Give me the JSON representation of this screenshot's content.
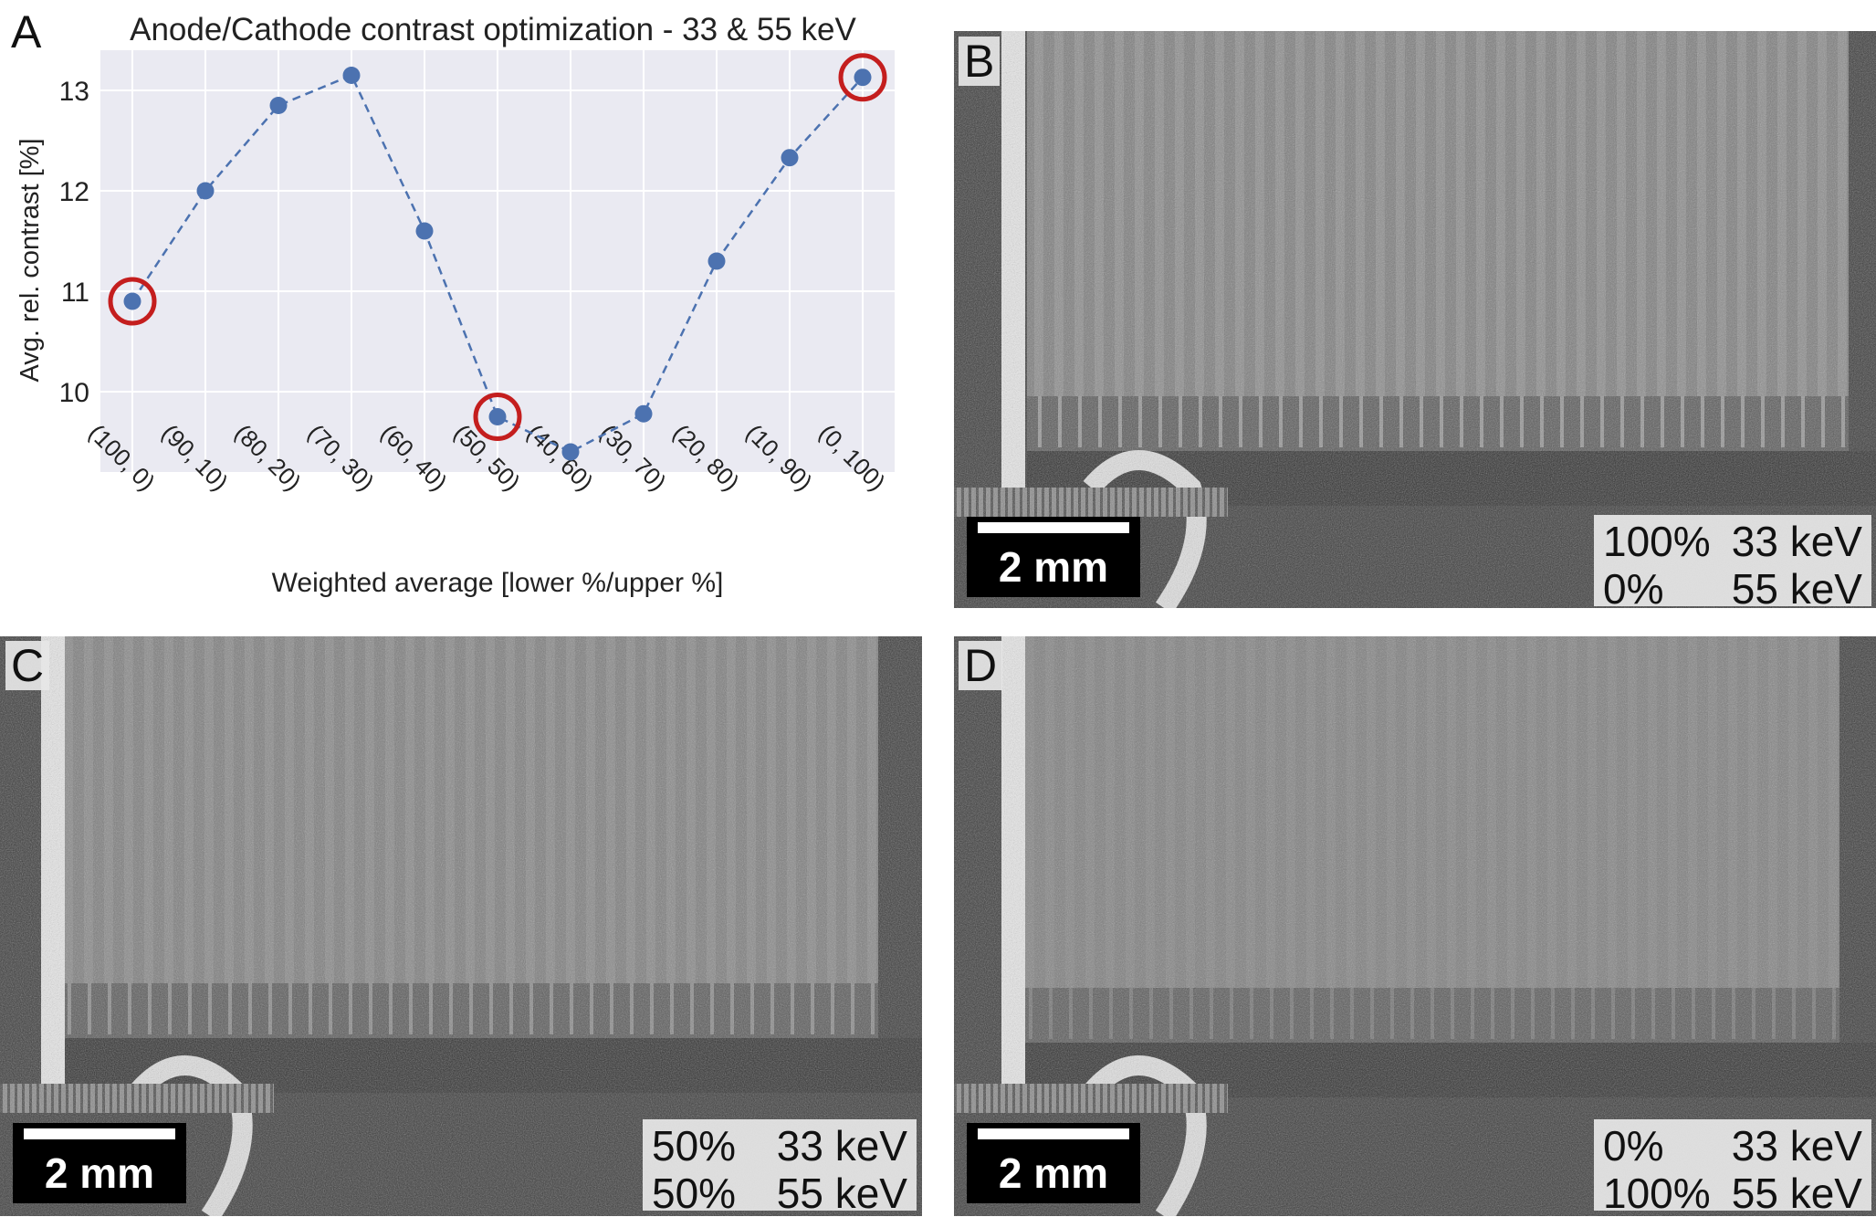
{
  "chart_data": {
    "type": "line",
    "title": "Anode/Cathode contrast optimization - 33 & 55 keV",
    "xlabel": "Weighted average [lower %/upper %]",
    "ylabel": "Avg. rel. contrast [%]",
    "categories": [
      "(100, 0)",
      "(90, 10)",
      "(80, 20)",
      "(70, 30)",
      "(60, 40)",
      "(50, 50)",
      "(40, 60)",
      "(30, 70)",
      "(20, 80)",
      "(10, 90)",
      "(0, 100)"
    ],
    "values": [
      10.9,
      12.0,
      12.85,
      13.15,
      11.6,
      9.75,
      9.4,
      9.78,
      11.3,
      12.33,
      13.13
    ],
    "yticks": [
      "10",
      "11",
      "12",
      "13"
    ],
    "ylim": [
      9.2,
      13.4
    ],
    "highlighted": [
      "(100, 0)",
      "(50, 50)",
      "(0, 100)"
    ],
    "grid": true,
    "line_color": "#4c72b0",
    "highlight_color": "#c41e1e",
    "background": "#eaeaf2"
  },
  "panels": {
    "a": {
      "letter": "A"
    },
    "b": {
      "letter": "B",
      "scale": "2 mm",
      "rows": [
        {
          "pct": "100%",
          "energy": "33 keV"
        },
        {
          "pct": "0%",
          "energy": "55 keV"
        }
      ]
    },
    "c": {
      "letter": "C",
      "scale": "2 mm",
      "rows": [
        {
          "pct": "50%",
          "energy": "33 keV"
        },
        {
          "pct": "50%",
          "energy": "55 keV"
        }
      ]
    },
    "d": {
      "letter": "D",
      "scale": "2 mm",
      "rows": [
        {
          "pct": "0%",
          "energy": "33 keV"
        },
        {
          "pct": "100%",
          "energy": "55 keV"
        }
      ]
    }
  }
}
